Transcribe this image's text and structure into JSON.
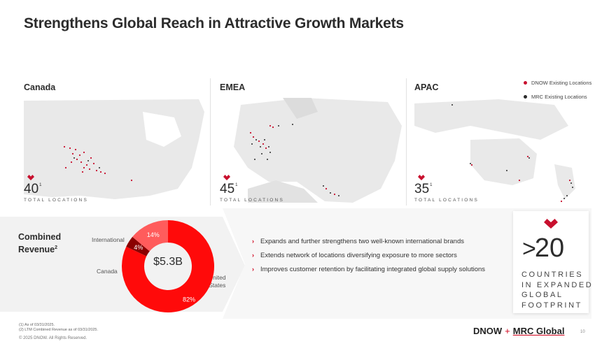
{
  "page_title": "Strengthens Global Reach in Attractive Growth Markets",
  "legend": {
    "items": [
      {
        "label": "DNOW Existing Locations",
        "color": "#c8102e"
      },
      {
        "label": "MRC Existing Locations",
        "color": "#2b2b2b"
      }
    ]
  },
  "regions": [
    {
      "name": "Canada",
      "count": "40",
      "note": "1",
      "label": "TOTAL LOCATIONS"
    },
    {
      "name": "EMEA",
      "count": "45",
      "note": "1",
      "label": "TOTAL LOCATIONS"
    },
    {
      "name": "APAC",
      "count": "35",
      "note": "1",
      "label": "TOTAL LOCATIONS"
    }
  ],
  "revenue": {
    "title": "Combined",
    "title_line2": "Revenue",
    "title_note": "2",
    "total": "$5.3B",
    "segments": [
      {
        "name": "United States",
        "name_line1": "United",
        "name_line2": "States",
        "pct_label": "82%",
        "value": 82,
        "color": "#ff0a0a"
      },
      {
        "name": "Canada",
        "pct_label": "4%",
        "value": 4,
        "color": "#8b0000"
      },
      {
        "name": "International",
        "pct_label": "14%",
        "value": 14,
        "color": "#ff5c5c"
      }
    ]
  },
  "bullets": [
    "Expands and further strengthens two well-known international brands",
    "Extends network of locations diversifying exposure to more sectors",
    "Improves customer retention by facilitating integrated global supply solutions"
  ],
  "countries": {
    "prefix": ">",
    "value": "20",
    "line1": "COUNTRIES",
    "line2": "IN EXPANDED",
    "line3": "GLOBAL",
    "line4": "FOOTPRINT"
  },
  "footnotes": {
    "n1": "(1)   As of 03/31/2025.",
    "n2": "(2)   LTM Combined Revenue as of 03/31/2025.",
    "copyright": "© 2025 DNOW. All Rights Reserved."
  },
  "brand": {
    "left": "DNOW",
    "plus": "+",
    "right": "MRC Global"
  },
  "page_number": "10"
}
